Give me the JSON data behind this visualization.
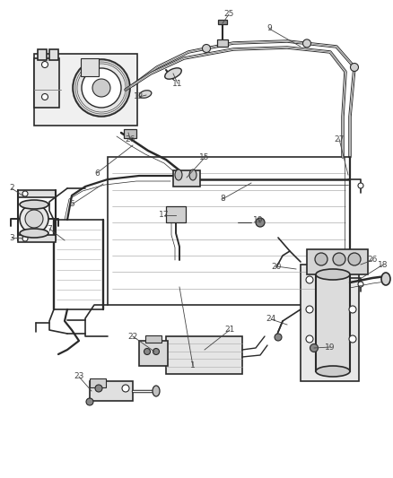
{
  "bg_color": "#ffffff",
  "line_color": "#2a2a2a",
  "label_color": "#444444",
  "lbl_fs": 6.5,
  "lw_hose": 2.0,
  "lw_body": 1.2,
  "lw_thin": 0.7,
  "lw_leader": 0.6,
  "labels": [
    [
      "1",
      210,
      400
    ],
    [
      "2",
      15,
      212
    ],
    [
      "3",
      15,
      263
    ],
    [
      "5",
      82,
      228
    ],
    [
      "6",
      115,
      196
    ],
    [
      "7",
      58,
      253
    ],
    [
      "8",
      248,
      220
    ],
    [
      "9",
      302,
      32
    ],
    [
      "11",
      200,
      95
    ],
    [
      "12",
      158,
      108
    ],
    [
      "15",
      229,
      178
    ],
    [
      "17",
      185,
      240
    ],
    [
      "18",
      427,
      295
    ],
    [
      "19",
      291,
      248
    ],
    [
      "19",
      368,
      387
    ],
    [
      "20",
      308,
      297
    ],
    [
      "21",
      258,
      368
    ],
    [
      "22",
      148,
      378
    ],
    [
      "23",
      88,
      420
    ],
    [
      "24",
      302,
      356
    ],
    [
      "25",
      255,
      16
    ],
    [
      "26",
      148,
      158
    ],
    [
      "26",
      415,
      292
    ],
    [
      "27",
      378,
      158
    ]
  ]
}
